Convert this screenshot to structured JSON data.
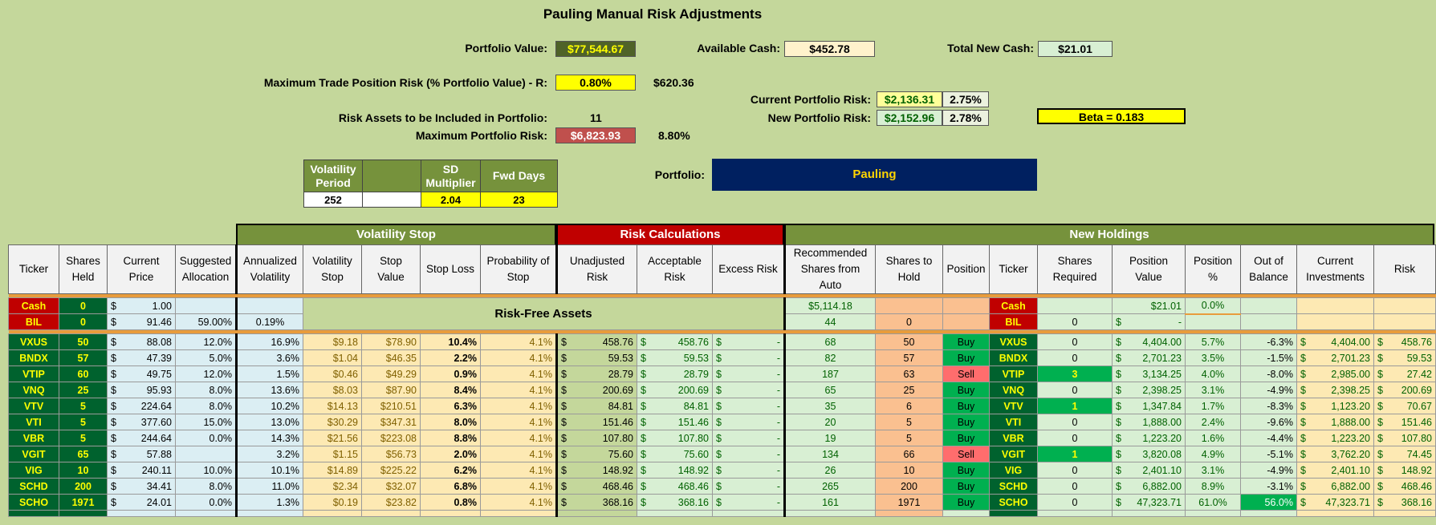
{
  "title": "Pauling Manual Risk Adjustments",
  "summary": {
    "portfolio_value_label": "Portfolio Value:",
    "portfolio_value": "$77,544.67",
    "available_cash_label": "Available Cash:",
    "available_cash": "$452.78",
    "total_new_cash_label": "Total New Cash:",
    "total_new_cash": "$21.01",
    "max_trade_risk_label": "Maximum Trade Position Risk (% Portfolio Value) - R:",
    "max_trade_risk_pct": "0.80%",
    "max_trade_risk_amt": "$620.36",
    "current_risk_label": "Current Portfolio Risk:",
    "current_risk": "$2,136.31",
    "current_risk_pct": "2.75%",
    "new_risk_label": "New Portfolio Risk:",
    "new_risk": "$2,152.96",
    "new_risk_pct": "2.78%",
    "beta": "Beta = 0.183",
    "risk_assets_label": "Risk Assets to be Included in Portfolio:",
    "risk_assets": "11",
    "max_portfolio_risk_label": "Maximum Portfolio Risk:",
    "max_portfolio_risk": "$6,823.93",
    "max_portfolio_risk_pct": "8.80%",
    "portfolio_label": "Portfolio:",
    "portfolio_name": "Pauling"
  },
  "params": {
    "vol_period_label": "Volatility Period",
    "sd_mult_label": "SD Multiplier",
    "fwd_days_label": "Fwd Days",
    "vol_period": "252",
    "sd_mult": "2.04",
    "fwd_days": "23"
  },
  "sections": {
    "vol_stop": "Volatility Stop",
    "risk_calc": "Risk Calculations",
    "new_holdings": "New Holdings"
  },
  "headers": [
    "Ticker",
    "Shares Held",
    "Current Price",
    "Suggested Allocation",
    "Annualized Volatility",
    "Volatility Stop",
    "Stop Value",
    "Stop Loss",
    "Probability of Stop",
    "Unadjusted Risk",
    "Acceptable Risk",
    "Excess Risk",
    "Recommended Shares from Auto",
    "Shares to Hold",
    "Position",
    "Ticker",
    "Shares Required",
    "Position Value",
    "Position %",
    "Out of Balance",
    "Current Investments",
    "Risk"
  ],
  "risk_free_label": "Risk-Free Assets",
  "cash_row": {
    "ticker": "Cash",
    "shares": "0",
    "price": "1.00",
    "rec": "$5,114.18",
    "ticker2": "Cash",
    "pos_value": "$21.01",
    "pos_pct": "0.0%"
  },
  "bil_row": {
    "ticker": "BIL",
    "shares": "0",
    "price": "91.46",
    "alloc": "59.00%",
    "vol": "0.19%",
    "rec": "44",
    "hold": "0",
    "ticker2": "BIL",
    "req": "0",
    "pos_value": "-"
  },
  "rows": [
    {
      "t": "VXUS",
      "sh": "50",
      "p": "88.08",
      "a": "12.0%",
      "v": "16.9%",
      "vs": "$9.18",
      "sv": "$78.90",
      "sl": "10.4%",
      "ps": "4.1%",
      "ur": "458.76",
      "ar": "458.76",
      "er": "-",
      "rec": "68",
      "hold": "50",
      "pos": "Buy",
      "req": "0",
      "pv": "4,404.00",
      "pp": "5.7%",
      "ob": "-6.3%",
      "ci": "4,404.00",
      "r": "458.76"
    },
    {
      "t": "BNDX",
      "sh": "57",
      "p": "47.39",
      "a": "5.0%",
      "v": "3.6%",
      "vs": "$1.04",
      "sv": "$46.35",
      "sl": "2.2%",
      "ps": "4.1%",
      "ur": "59.53",
      "ar": "59.53",
      "er": "-",
      "rec": "82",
      "hold": "57",
      "pos": "Buy",
      "req": "0",
      "pv": "2,701.23",
      "pp": "3.5%",
      "ob": "-1.5%",
      "ci": "2,701.23",
      "r": "59.53"
    },
    {
      "t": "VTIP",
      "sh": "60",
      "p": "49.75",
      "a": "12.0%",
      "v": "1.5%",
      "vs": "$0.46",
      "sv": "$49.29",
      "sl": "0.9%",
      "ps": "4.1%",
      "ur": "28.79",
      "ar": "28.79",
      "er": "-",
      "rec": "187",
      "hold": "63",
      "pos": "Sell",
      "req": "3",
      "pv": "3,134.25",
      "pp": "4.0%",
      "ob": "-8.0%",
      "ci": "2,985.00",
      "r": "27.42"
    },
    {
      "t": "VNQ",
      "sh": "25",
      "p": "95.93",
      "a": "8.0%",
      "v": "13.6%",
      "vs": "$8.03",
      "sv": "$87.90",
      "sl": "8.4%",
      "ps": "4.1%",
      "ur": "200.69",
      "ar": "200.69",
      "er": "-",
      "rec": "65",
      "hold": "25",
      "pos": "Buy",
      "req": "0",
      "pv": "2,398.25",
      "pp": "3.1%",
      "ob": "-4.9%",
      "ci": "2,398.25",
      "r": "200.69"
    },
    {
      "t": "VTV",
      "sh": "5",
      "p": "224.64",
      "a": "8.0%",
      "v": "10.2%",
      "vs": "$14.13",
      "sv": "$210.51",
      "sl": "6.3%",
      "ps": "4.1%",
      "ur": "84.81",
      "ar": "84.81",
      "er": "-",
      "rec": "35",
      "hold": "6",
      "pos": "Buy",
      "req": "1",
      "pv": "1,347.84",
      "pp": "1.7%",
      "ob": "-8.3%",
      "ci": "1,123.20",
      "r": "70.67"
    },
    {
      "t": "VTI",
      "sh": "5",
      "p": "377.60",
      "a": "15.0%",
      "v": "13.0%",
      "vs": "$30.29",
      "sv": "$347.31",
      "sl": "8.0%",
      "ps": "4.1%",
      "ur": "151.46",
      "ar": "151.46",
      "er": "-",
      "rec": "20",
      "hold": "5",
      "pos": "Buy",
      "req": "0",
      "pv": "1,888.00",
      "pp": "2.4%",
      "ob": "-9.6%",
      "ci": "1,888.00",
      "r": "151.46"
    },
    {
      "t": "VBR",
      "sh": "5",
      "p": "244.64",
      "a": "0.0%",
      "v": "14.3%",
      "vs": "$21.56",
      "sv": "$223.08",
      "sl": "8.8%",
      "ps": "4.1%",
      "ur": "107.80",
      "ar": "107.80",
      "er": "-",
      "rec": "19",
      "hold": "5",
      "pos": "Buy",
      "req": "0",
      "pv": "1,223.20",
      "pp": "1.6%",
      "ob": "-4.4%",
      "ci": "1,223.20",
      "r": "107.80"
    },
    {
      "t": "VGIT",
      "sh": "65",
      "p": "57.88",
      "a": "",
      "v": "3.2%",
      "vs": "$1.15",
      "sv": "$56.73",
      "sl": "2.0%",
      "ps": "4.1%",
      "ur": "75.60",
      "ar": "75.60",
      "er": "-",
      "rec": "134",
      "hold": "66",
      "pos": "Sell",
      "req": "1",
      "pv": "3,820.08",
      "pp": "4.9%",
      "ob": "-5.1%",
      "ci": "3,762.20",
      "r": "74.45"
    },
    {
      "t": "VIG",
      "sh": "10",
      "p": "240.11",
      "a": "10.0%",
      "v": "10.1%",
      "vs": "$14.89",
      "sv": "$225.22",
      "sl": "6.2%",
      "ps": "4.1%",
      "ur": "148.92",
      "ar": "148.92",
      "er": "-",
      "rec": "26",
      "hold": "10",
      "pos": "Buy",
      "req": "0",
      "pv": "2,401.10",
      "pp": "3.1%",
      "ob": "-4.9%",
      "ci": "2,401.10",
      "r": "148.92"
    },
    {
      "t": "SCHD",
      "sh": "200",
      "p": "34.41",
      "a": "8.0%",
      "v": "11.0%",
      "vs": "$2.34",
      "sv": "$32.07",
      "sl": "6.8%",
      "ps": "4.1%",
      "ur": "468.46",
      "ar": "468.46",
      "er": "-",
      "rec": "265",
      "hold": "200",
      "pos": "Buy",
      "req": "0",
      "pv": "6,882.00",
      "pp": "8.9%",
      "ob": "-3.1%",
      "ci": "6,882.00",
      "r": "468.46"
    },
    {
      "t": "SCHO",
      "sh": "1971",
      "p": "24.01",
      "a": "0.0%",
      "v": "1.3%",
      "vs": "$0.19",
      "sv": "$23.82",
      "sl": "0.8%",
      "ps": "4.1%",
      "ur": "368.16",
      "ar": "368.16",
      "er": "-",
      "rec": "161",
      "hold": "1971",
      "pos": "Buy",
      "req": "0",
      "pv": "47,323.71",
      "pp": "61.0%",
      "ob": "56.0%",
      "ci": "47,323.71",
      "r": "368.16"
    }
  ],
  "currency": "$",
  "colors": {
    "background": "#c4d79b",
    "dark_green": "#00622e",
    "header_green": "#76923c",
    "risk_red": "#c00000",
    "navy": "#002060",
    "yellow": "#ffff00"
  }
}
